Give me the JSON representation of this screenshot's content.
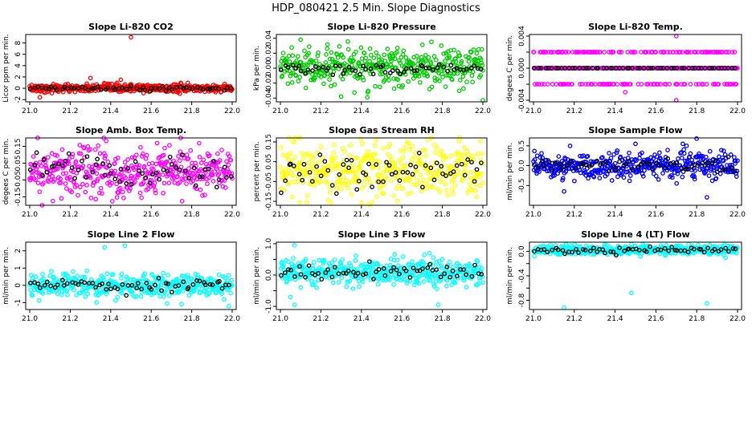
{
  "figure": {
    "title": "HDP_080421  2.5 Min. Slope Diagnostics"
  },
  "chart_data": [
    {
      "type": "scatter",
      "title": "Slope Li-820 CO2",
      "ylabel": "Licor ppm per min.",
      "xlim": [
        21.0,
        22.0
      ],
      "ylim": [
        -2.4,
        9.5
      ],
      "xticks": [
        "21.0",
        "21.2",
        "21.4",
        "21.6",
        "21.8",
        "22.0"
      ],
      "yticks": [
        -2,
        0,
        2,
        4,
        6,
        8
      ],
      "ytick_labels": [
        "-2",
        "0",
        "2",
        "4",
        "6",
        "8"
      ],
      "color": "#ff0000",
      "center": 0.0,
      "spread": 0.35,
      "black_spread": 0.2,
      "outliers": [
        [
          21.5,
          9.0
        ],
        [
          21.3,
          1.8
        ],
        [
          21.05,
          -1.6
        ],
        [
          21.45,
          1.5
        ]
      ]
    },
    {
      "type": "scatter",
      "title": "Slope Li-820 Pressure",
      "ylabel": "kPa per min.",
      "xlim": [
        21.0,
        22.0
      ],
      "ylim": [
        -0.045,
        0.045
      ],
      "xticks": [
        "21.0",
        "21.2",
        "21.4",
        "21.6",
        "21.8",
        "22.0"
      ],
      "yticks": [
        -0.04,
        -0.02,
        0.0,
        0.02,
        0.04
      ],
      "ytick_labels": [
        "-0.04",
        "-0.02",
        "0.00",
        "0.02",
        "0.04"
      ],
      "color": "#00cc00",
      "center": 0.0,
      "spread": 0.012,
      "black_spread": 0.004,
      "outliers": [
        [
          22.0,
          -0.043
        ],
        [
          21.3,
          -0.038
        ],
        [
          21.1,
          0.038
        ]
      ]
    },
    {
      "type": "scatter",
      "title": "Slope Li-820 Temp.",
      "ylabel": "degees C per min.",
      "xlim": [
        21.0,
        22.0
      ],
      "ylim": [
        -0.0042,
        0.0042
      ],
      "xticks": [
        "21.0",
        "21.2",
        "21.4",
        "21.6",
        "21.8",
        "22.0"
      ],
      "yticks": [
        -0.004,
        -0.002,
        0.0,
        0.002,
        0.004
      ],
      "ytick_labels": [
        "-0.004",
        "",
        "0.000",
        "",
        "0.004"
      ],
      "color": "#ff00ff",
      "discrete": [
        -0.002,
        0.0,
        0.002
      ],
      "black_spread": 0.0,
      "outliers": [
        [
          21.7,
          0.004
        ],
        [
          21.7,
          -0.004
        ],
        [
          21.45,
          -0.003
        ]
      ]
    },
    {
      "type": "scatter",
      "title": "Slope Amb. Box Temp.",
      "ylabel": "degees C per min.",
      "xlim": [
        21.0,
        22.0
      ],
      "ylim": [
        -0.2,
        0.2
      ],
      "xticks": [
        "21.0",
        "21.2",
        "21.4",
        "21.6",
        "21.8",
        "22.0"
      ],
      "yticks": [
        -0.15,
        -0.05,
        0.05,
        0.15
      ],
      "ytick_labels": [
        "-0.15",
        "-0.05",
        "0.05",
        "0.15"
      ],
      "color": "#ff00ff",
      "center": 0.0,
      "spread": 0.075,
      "black_spread": 0.05,
      "outliers": []
    },
    {
      "type": "scatter",
      "title": "Slope Gas Stream RH",
      "ylabel": "percent per min.",
      "xlim": [
        21.0,
        22.0
      ],
      "ylim": [
        -0.17,
        0.17
      ],
      "xticks": [
        "21.0",
        "21.2",
        "21.4",
        "21.6",
        "21.8",
        "22.0"
      ],
      "yticks": [
        -0.15,
        -0.05,
        0.05,
        0.15
      ],
      "ytick_labels": [
        "-0.15",
        "-0.05",
        "0.05",
        "0.15"
      ],
      "color": "#ffff00",
      "center": 0.0,
      "spread": 0.07,
      "black_spread": 0.04,
      "outliers": []
    },
    {
      "type": "scatter",
      "title": "Slope Sample Flow",
      "ylabel": "ml/min per min.",
      "xlim": [
        21.0,
        22.0
      ],
      "ylim": [
        -1.0,
        0.7
      ],
      "xticks": [
        "21.0",
        "21.2",
        "21.4",
        "21.6",
        "21.8",
        "22.0"
      ],
      "yticks": [
        -0.5,
        0.0,
        0.5
      ],
      "ytick_labels": [
        "-0.5",
        "0.0",
        "0.5"
      ],
      "color": "#0000ff",
      "center": 0.0,
      "spread": 0.17,
      "black_spread": 0.08,
      "outliers": [
        [
          21.5,
          0.55
        ],
        [
          21.75,
          0.5
        ],
        [
          21.85,
          -0.8
        ],
        [
          21.15,
          -0.65
        ]
      ]
    },
    {
      "type": "scatter",
      "title": "Slope Line 2 Flow",
      "ylabel": "ml/min per min.",
      "xlim": [
        21.0,
        22.0
      ],
      "ylim": [
        -1.4,
        2.5
      ],
      "xticks": [
        "21.0",
        "21.2",
        "21.4",
        "21.6",
        "21.8",
        "22.0"
      ],
      "yticks": [
        -1,
        0,
        1,
        2
      ],
      "ytick_labels": [
        "-1",
        "0",
        "1",
        "2"
      ],
      "color": "#00ffff",
      "center": 0.0,
      "spread": 0.35,
      "black_spread": 0.18,
      "outliers": [
        [
          21.37,
          2.2
        ],
        [
          21.47,
          2.3
        ],
        [
          21.33,
          -1.0
        ],
        [
          21.75,
          -1.1
        ]
      ]
    },
    {
      "type": "scatter",
      "title": "Slope Line 3 Flow",
      "ylabel": "ml/min per min.",
      "xlim": [
        21.0,
        22.0
      ],
      "ylim": [
        -1.1,
        1.05
      ],
      "xticks": [
        "21.0",
        "21.2",
        "21.4",
        "21.6",
        "21.8",
        "22.0"
      ],
      "yticks": [
        -1.0,
        -0.5,
        0.0,
        0.5,
        1.0
      ],
      "ytick_labels": [
        "-1.0",
        "",
        "0.0",
        "",
        "1.0"
      ],
      "color": "#00ffff",
      "center": 0.1,
      "spread": 0.2,
      "black_spread": 0.12,
      "outliers": [
        [
          21.07,
          0.95
        ],
        [
          21.07,
          -0.95
        ],
        [
          21.78,
          -0.95
        ],
        [
          21.05,
          -0.7
        ]
      ]
    },
    {
      "type": "scatter",
      "title": "Slope Line 4 (LT) Flow",
      "ylabel": "ml/min per min.",
      "xlim": [
        21.0,
        22.0
      ],
      "ylim": [
        -0.95,
        0.15
      ],
      "xticks": [
        "21.0",
        "21.2",
        "21.4",
        "21.6",
        "21.8",
        "22.0"
      ],
      "yticks": [
        -0.8,
        -0.6,
        -0.4,
        -0.2,
        0.0
      ],
      "ytick_labels": [
        "-0.8",
        "",
        "-0.4",
        "",
        "0.0"
      ],
      "color": "#00ffff",
      "center": 0.02,
      "spread": 0.04,
      "black_spread": 0.03,
      "outliers": [
        [
          21.15,
          -0.92
        ],
        [
          21.85,
          -0.85
        ],
        [
          21.48,
          -0.68
        ]
      ]
    }
  ]
}
